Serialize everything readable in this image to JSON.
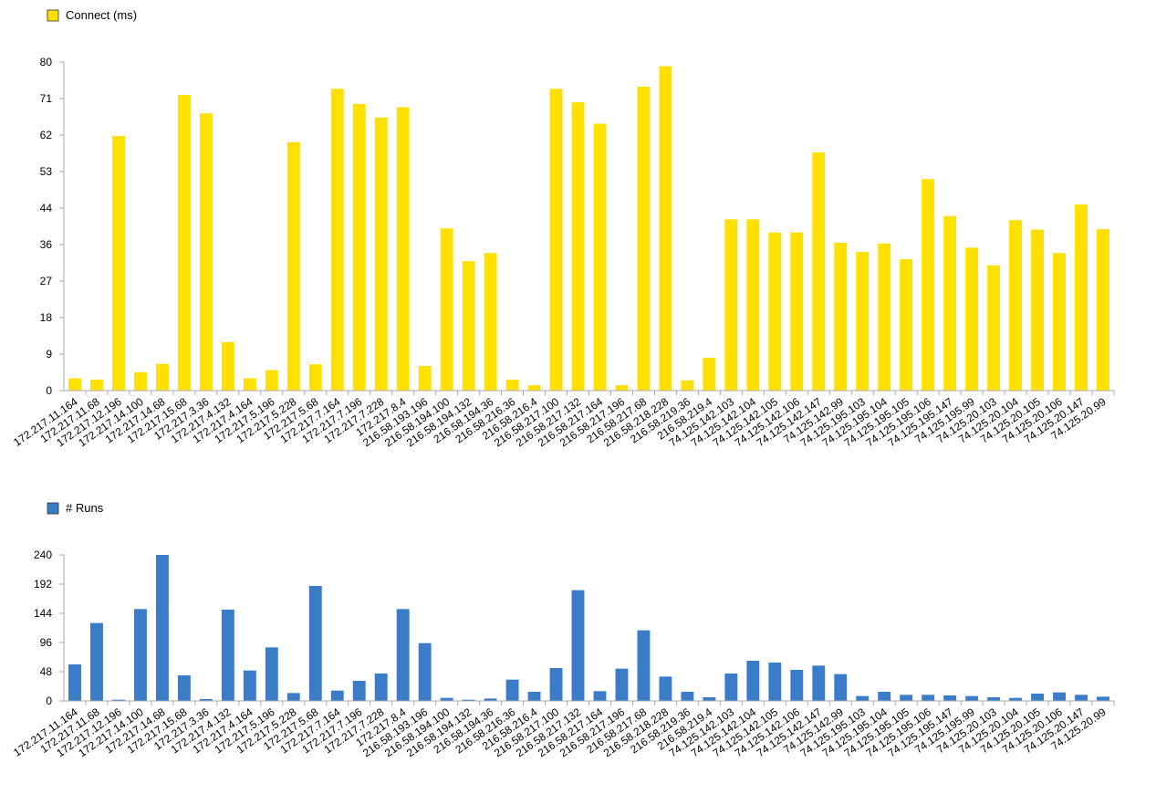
{
  "chart_data": [
    {
      "type": "bar",
      "legend_position": "top-left",
      "grid": false,
      "color": "#FFE000",
      "ylim": [
        0,
        80
      ],
      "yticks": [
        "0",
        "9",
        "18",
        "27",
        "36",
        "44",
        "53",
        "62",
        "71",
        "80"
      ],
      "categories": [
        "172.217.11.164",
        "172.217.11.68",
        "172.217.12.196",
        "172.217.14.100",
        "172.217.14.68",
        "172.217.15.68",
        "172.217.3.36",
        "172.217.4.132",
        "172.217.4.164",
        "172.217.5.196",
        "172.217.5.228",
        "172.217.5.68",
        "172.217.7.164",
        "172.217.7.196",
        "172.217.7.228",
        "172.217.8.4",
        "216.58.193.196",
        "216.58.194.100",
        "216.58.194.132",
        "216.58.194.36",
        "216.58.216.36",
        "216.58.216.4",
        "216.58.217.100",
        "216.58.217.132",
        "216.58.217.164",
        "216.58.217.196",
        "216.58.217.68",
        "216.58.218.228",
        "216.58.219.36",
        "216.58.219.4",
        "74.125.142.103",
        "74.125.142.104",
        "74.125.142.105",
        "74.125.142.106",
        "74.125.142.147",
        "74.125.142.99",
        "74.125.195.103",
        "74.125.195.104",
        "74.125.195.105",
        "74.125.195.106",
        "74.125.195.147",
        "74.125.195.99",
        "74.125.20.103",
        "74.125.20.104",
        "74.125.20.105",
        "74.125.20.106",
        "74.125.20.147",
        "74.125.20.99"
      ],
      "series": [
        {
          "name": "Connect (ms)",
          "values": [
            3,
            2.7,
            62,
            4.5,
            6.5,
            72,
            67.5,
            11.8,
            3,
            5,
            60.5,
            6.4,
            73.5,
            69.8,
            66.5,
            69,
            6,
            39.5,
            31.5,
            33.5,
            2.7,
            1.3,
            73.5,
            70.2,
            65,
            1.3,
            74,
            79,
            2.5,
            8,
            41.7,
            41.7,
            38.5,
            38.5,
            58,
            36,
            33.8,
            35.8,
            32,
            51.5,
            42.5,
            34.8,
            30.5,
            41.5,
            39.2,
            33.5,
            45.3,
            39.3
          ]
        }
      ]
    },
    {
      "type": "bar",
      "legend_position": "top-left",
      "grid": false,
      "color": "#3A7CC8",
      "ylim": [
        0,
        240
      ],
      "yticks": [
        "0",
        "48",
        "96",
        "144",
        "192",
        "240"
      ],
      "categories": [
        "172.217.11.164",
        "172.217.11.68",
        "172.217.12.196",
        "172.217.14.100",
        "172.217.14.68",
        "172.217.15.68",
        "172.217.3.36",
        "172.217.4.132",
        "172.217.4.164",
        "172.217.5.196",
        "172.217.5.228",
        "172.217.5.68",
        "172.217.7.164",
        "172.217.7.196",
        "172.217.7.228",
        "172.217.8.4",
        "216.58.193.196",
        "216.58.194.100",
        "216.58.194.132",
        "216.58.194.36",
        "216.58.216.36",
        "216.58.216.4",
        "216.58.217.100",
        "216.58.217.132",
        "216.58.217.164",
        "216.58.217.196",
        "216.58.217.68",
        "216.58.218.228",
        "216.58.219.36",
        "216.58.219.4",
        "74.125.142.103",
        "74.125.142.104",
        "74.125.142.105",
        "74.125.142.106",
        "74.125.142.147",
        "74.125.142.99",
        "74.125.195.103",
        "74.125.195.104",
        "74.125.195.105",
        "74.125.195.106",
        "74.125.195.147",
        "74.125.195.99",
        "74.125.20.103",
        "74.125.20.104",
        "74.125.20.105",
        "74.125.20.106",
        "74.125.20.147",
        "74.125.20.99"
      ],
      "series": [
        {
          "name": "# Runs",
          "values": [
            60,
            128,
            2,
            151,
            240,
            42,
            3,
            150,
            50,
            88,
            13,
            189,
            17,
            33,
            45,
            151,
            95,
            5,
            2,
            4,
            35,
            15,
            54,
            182,
            16,
            53,
            116,
            40,
            15,
            6,
            45,
            66,
            63,
            51,
            58,
            44,
            8,
            15,
            10,
            10,
            9,
            8,
            6,
            5,
            12,
            14,
            10,
            7
          ]
        }
      ]
    }
  ]
}
